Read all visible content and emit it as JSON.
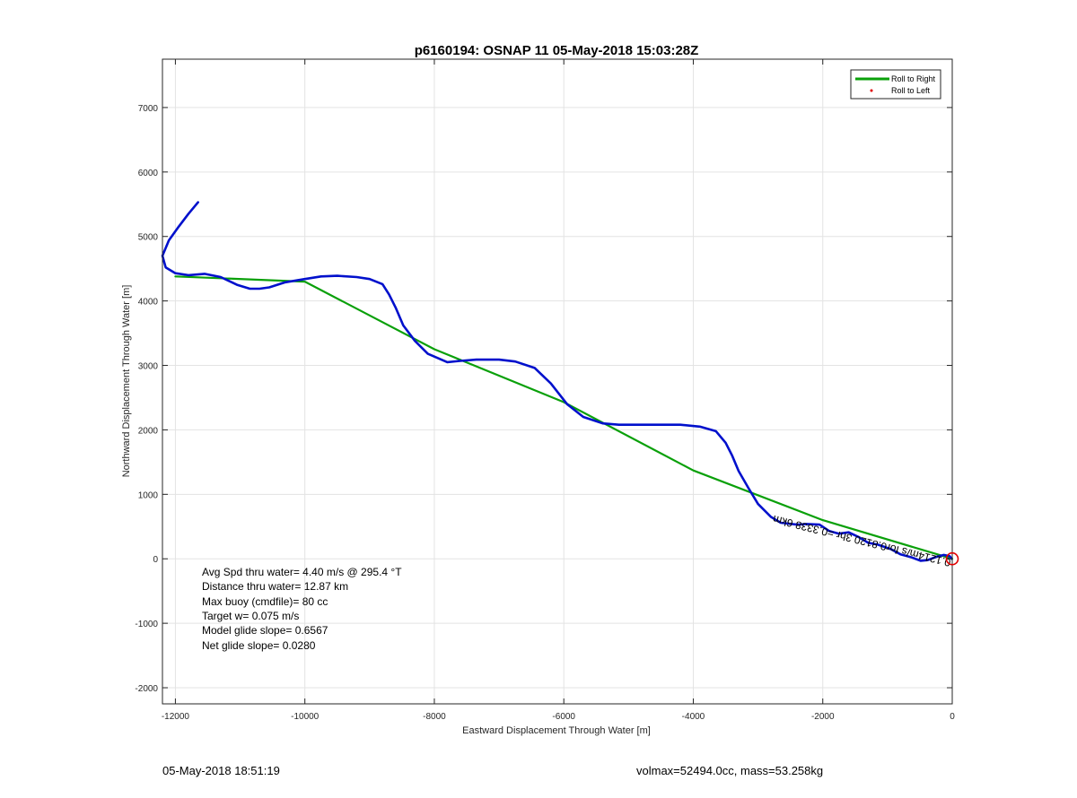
{
  "footer": {
    "left": "05-May-2018 18:51:19",
    "right": "volmax=52494.0cc, mass=53.258kg"
  },
  "chart_data": {
    "type": "line",
    "title": "p6160194: OSNAP 11 05-May-2018 15:03:28Z",
    "xlabel": "Eastward Displacement Through Water [m]",
    "ylabel": "Northward Displacement Through Water [m]",
    "xlim": [
      -12200,
      0
    ],
    "ylim": [
      -2250,
      7750
    ],
    "xticks": [
      -12000,
      -10000,
      -8000,
      -6000,
      -4000,
      -2000,
      0
    ],
    "yticks": [
      -2000,
      -1000,
      0,
      1000,
      2000,
      3000,
      4000,
      5000,
      6000,
      7000
    ],
    "grid": true,
    "legend_position": "top-right",
    "legend": [
      {
        "label": "Roll to Right",
        "color": "#0aa00a",
        "marker": "line"
      },
      {
        "label": "Roll to Left",
        "color": "#e00000",
        "marker": "dot"
      }
    ],
    "series": [
      {
        "kind": "track",
        "color": "#0010cc",
        "x": [
          -11650,
          -11800,
          -11950,
          -12100,
          -12200,
          -12150,
          -12000,
          -11800,
          -11550,
          -11300,
          -11050,
          -10850,
          -10700,
          -10550,
          -10300,
          -10000,
          -9750,
          -9500,
          -9200,
          -9000,
          -8800,
          -8700,
          -8600,
          -8480,
          -8300,
          -8100,
          -7800,
          -7600,
          -7350,
          -7000,
          -6750,
          -6450,
          -6200,
          -5950,
          -5700,
          -5400,
          -5150,
          -4800,
          -4500,
          -4200,
          -3900,
          -3650,
          -3500,
          -3400,
          -3300,
          -3150,
          -3000,
          -2800,
          -2650,
          -2400,
          -2250,
          -2050,
          -1900,
          -1750,
          -1600,
          -1450,
          -1300,
          -1150,
          -950,
          -800,
          -620,
          -490,
          -380,
          -250,
          -130,
          -40,
          -10
        ],
        "y": [
          5530,
          5350,
          5150,
          4940,
          4700,
          4520,
          4430,
          4400,
          4420,
          4370,
          4250,
          4190,
          4190,
          4210,
          4290,
          4340,
          4380,
          4390,
          4370,
          4340,
          4260,
          4100,
          3900,
          3620,
          3380,
          3180,
          3050,
          3070,
          3090,
          3090,
          3060,
          2960,
          2720,
          2400,
          2200,
          2100,
          2080,
          2080,
          2080,
          2080,
          2050,
          1980,
          1800,
          1600,
          1360,
          1100,
          850,
          650,
          560,
          530,
          540,
          530,
          430,
          390,
          410,
          340,
          250,
          220,
          150,
          70,
          20,
          -30,
          -20,
          30,
          60,
          40,
          0
        ]
      },
      {
        "kind": "dive-segments",
        "color": "#0aa00a",
        "x": [
          -12000,
          -10000,
          -8000,
          -6000,
          -4000,
          -2000,
          0
        ],
        "y": [
          4380,
          4300,
          3250,
          2430,
          1370,
          600,
          0
        ]
      }
    ],
    "annotations": [
      "Avg Spd thru water=  4.40 m/s @ 295.4 °T",
      "Distance thru water= 12.87 km",
      "Max buoy (cmdfile)= 80 cc",
      "Target w= 0.075 m/s",
      "Model glide slope= 0.6567",
      "Net glide slope= 0.0280"
    ],
    "rotated_label": "0.1214m/s for0.8120 3hr =0.3338 6km",
    "end_marker": {
      "x": 0,
      "y": 0,
      "color": "#e00000"
    }
  }
}
